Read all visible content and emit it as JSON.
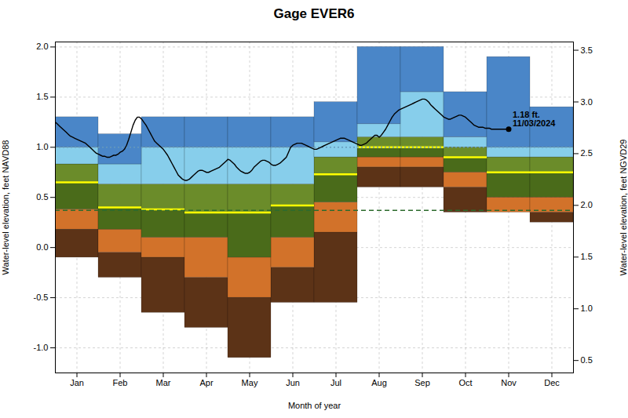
{
  "chart_data": {
    "type": "percentile_bands",
    "title": "Gage EVER6",
    "xlabel": "Month of year",
    "ylabel": "Water-level elevation, feet NAVD88",
    "y2label": "Water-level elevation, feet NGVD29",
    "categories": [
      "Jan",
      "Feb",
      "Mar",
      "Apr",
      "May",
      "Jun",
      "Jul",
      "Aug",
      "Sep",
      "Oct",
      "Nov",
      "Dec"
    ],
    "xlim": [
      0,
      12
    ],
    "xticks": [
      {
        "value": 0.5,
        "label": "Jan"
      },
      {
        "value": 1.5,
        "label": "Feb"
      },
      {
        "value": 2.5,
        "label": "Mar"
      },
      {
        "value": 3.5,
        "label": "Apr"
      },
      {
        "value": 4.5,
        "label": "May"
      },
      {
        "value": 5.5,
        "label": "Jun"
      },
      {
        "value": 6.5,
        "label": "Jul"
      },
      {
        "value": 7.5,
        "label": "Aug"
      },
      {
        "value": 8.5,
        "label": "Sep"
      },
      {
        "value": 9.5,
        "label": "Oct"
      },
      {
        "value": 10.5,
        "label": "Nov"
      },
      {
        "value": 11.5,
        "label": "Dec"
      }
    ],
    "ylim": [
      -1.25,
      2.05
    ],
    "yticks": [
      {
        "value": -1.0,
        "label": "-1.0"
      },
      {
        "value": -0.5,
        "label": "-0.5"
      },
      {
        "value": 0.0,
        "label": "0.0"
      },
      {
        "value": 0.5,
        "label": "0.5"
      },
      {
        "value": 1.0,
        "label": "1.0"
      },
      {
        "value": 1.5,
        "label": "1.5"
      },
      {
        "value": 2.0,
        "label": "2.0"
      }
    ],
    "y2lim": [
      0.38,
      3.58
    ],
    "y2ticks": [
      {
        "value": 0.5,
        "label": "0.5"
      },
      {
        "value": 1.0,
        "label": "1.0"
      },
      {
        "value": 1.5,
        "label": "1.5"
      },
      {
        "value": 2.0,
        "label": "2.0"
      },
      {
        "value": 2.5,
        "label": "2.5"
      },
      {
        "value": 3.0,
        "label": "3.0"
      },
      {
        "value": 3.5,
        "label": "3.5"
      }
    ],
    "grid": true,
    "percentiles": {
      "p0": [
        -0.1,
        -0.3,
        -0.65,
        -0.8,
        -1.1,
        -0.55,
        -0.55,
        0.6,
        0.6,
        0.35,
        0.35,
        0.25
      ],
      "p10": [
        0.18,
        -0.05,
        -0.1,
        -0.3,
        -0.5,
        -0.2,
        0.15,
        0.8,
        0.8,
        0.6,
        0.35,
        0.35
      ],
      "p25": [
        0.38,
        0.18,
        0.1,
        0.1,
        -0.1,
        0.1,
        0.45,
        0.9,
        0.9,
        0.75,
        0.5,
        0.5
      ],
      "p50": [
        0.65,
        0.4,
        0.38,
        0.35,
        0.35,
        0.42,
        0.73,
        1.0,
        1.0,
        0.9,
        0.75,
        0.75
      ],
      "p75": [
        0.83,
        0.63,
        0.63,
        0.63,
        0.63,
        0.63,
        0.9,
        1.1,
        1.1,
        1.0,
        0.9,
        0.9
      ],
      "p90": [
        1.0,
        0.83,
        1.0,
        1.0,
        1.0,
        1.0,
        1.05,
        1.23,
        1.55,
        1.1,
        1.0,
        1.0
      ],
      "p100": [
        1.3,
        1.13,
        1.3,
        1.3,
        1.3,
        1.3,
        1.45,
        2.0,
        2.0,
        1.55,
        1.9,
        1.4
      ]
    },
    "band_colors": [
      "#5c3317",
      "#d2722a",
      "#4a6b1a",
      "#6b8c2a",
      "#87ceeb",
      "#4a86c8"
    ],
    "median": {
      "color": "#ffff00"
    },
    "reference_lines": [
      {
        "y": 1.0,
        "color": "#6699bb",
        "line_style": "dotted"
      },
      {
        "y": 0.37,
        "color": "#2d6a2d",
        "line_style": "dashed"
      }
    ],
    "observed": {
      "color": "#000000",
      "x": [
        0.0,
        0.05,
        0.1,
        0.15,
        0.2,
        0.25,
        0.3,
        0.35,
        0.4,
        0.45,
        0.5,
        0.55,
        0.6,
        0.65,
        0.7,
        0.75,
        0.8,
        0.85,
        0.9,
        0.95,
        1.0,
        1.05,
        1.1,
        1.15,
        1.2,
        1.25,
        1.3,
        1.35,
        1.4,
        1.45,
        1.5,
        1.55,
        1.6,
        1.65,
        1.7,
        1.75,
        1.8,
        1.85,
        1.9,
        1.95,
        2.0,
        2.05,
        2.1,
        2.15,
        2.2,
        2.25,
        2.3,
        2.35,
        2.4,
        2.45,
        2.5,
        2.55,
        2.6,
        2.65,
        2.7,
        2.75,
        2.8,
        2.85,
        2.9,
        2.95,
        3.0,
        3.05,
        3.1,
        3.15,
        3.2,
        3.25,
        3.3,
        3.35,
        3.4,
        3.45,
        3.5,
        3.55,
        3.6,
        3.65,
        3.7,
        3.75,
        3.8,
        3.85,
        3.9,
        3.95,
        4.0,
        4.05,
        4.1,
        4.15,
        4.2,
        4.25,
        4.3,
        4.35,
        4.4,
        4.45,
        4.5,
        4.55,
        4.6,
        4.65,
        4.7,
        4.75,
        4.8,
        4.85,
        4.9,
        4.95,
        5.0,
        5.05,
        5.1,
        5.15,
        5.2,
        5.25,
        5.3,
        5.35,
        5.4,
        5.45,
        5.5,
        5.55,
        5.6,
        5.65,
        5.7,
        5.75,
        5.8,
        5.85,
        5.9,
        5.95,
        6.0,
        6.05,
        6.1,
        6.15,
        6.2,
        6.25,
        6.3,
        6.35,
        6.4,
        6.45,
        6.5,
        6.55,
        6.6,
        6.65,
        6.7,
        6.75,
        6.8,
        6.85,
        6.9,
        6.95,
        7.0,
        7.05,
        7.1,
        7.15,
        7.2,
        7.25,
        7.3,
        7.35,
        7.4,
        7.45,
        7.5,
        7.55,
        7.6,
        7.65,
        7.7,
        7.75,
        7.8,
        7.85,
        7.9,
        7.95,
        8.0,
        8.05,
        8.1,
        8.15,
        8.2,
        8.25,
        8.3,
        8.35,
        8.4,
        8.45,
        8.5,
        8.55,
        8.6,
        8.65,
        8.7,
        8.75,
        8.8,
        8.85,
        8.9,
        8.95,
        9.0,
        9.05,
        9.1,
        9.15,
        9.2,
        9.25,
        9.3,
        9.35,
        9.4,
        9.45,
        9.5,
        9.55,
        9.6,
        9.65,
        9.7,
        9.75,
        9.8,
        9.85,
        9.9,
        9.95,
        10.0,
        10.05,
        10.1,
        10.15,
        10.2,
        10.25,
        10.3,
        10.35,
        10.4,
        10.45,
        10.5
      ],
      "values": [
        1.25,
        1.23,
        1.21,
        1.19,
        1.17,
        1.15,
        1.13,
        1.11,
        1.1,
        1.09,
        1.08,
        1.07,
        1.06,
        1.05,
        1.04,
        1.02,
        1.0,
        0.98,
        0.96,
        0.94,
        0.93,
        0.92,
        0.91,
        0.91,
        0.9,
        0.9,
        0.91,
        0.92,
        0.92,
        0.93,
        0.95,
        0.96,
        0.98,
        1.02,
        1.08,
        1.15,
        1.22,
        1.27,
        1.3,
        1.3,
        1.28,
        1.25,
        1.22,
        1.18,
        1.14,
        1.1,
        1.06,
        1.04,
        1.02,
        1.0,
        0.98,
        0.95,
        0.92,
        0.88,
        0.84,
        0.8,
        0.76,
        0.72,
        0.7,
        0.68,
        0.67,
        0.67,
        0.68,
        0.7,
        0.72,
        0.74,
        0.76,
        0.77,
        0.77,
        0.76,
        0.75,
        0.75,
        0.76,
        0.77,
        0.78,
        0.79,
        0.8,
        0.82,
        0.84,
        0.86,
        0.88,
        0.87,
        0.85,
        0.83,
        0.8,
        0.78,
        0.76,
        0.75,
        0.74,
        0.74,
        0.75,
        0.77,
        0.8,
        0.82,
        0.84,
        0.86,
        0.87,
        0.87,
        0.86,
        0.85,
        0.83,
        0.82,
        0.82,
        0.83,
        0.84,
        0.86,
        0.88,
        0.9,
        0.95,
        1.0,
        1.02,
        1.03,
        1.04,
        1.04,
        1.04,
        1.03,
        1.02,
        1.01,
        1.0,
        0.99,
        0.98,
        0.98,
        0.99,
        1.0,
        1.01,
        1.02,
        1.03,
        1.04,
        1.05,
        1.06,
        1.07,
        1.08,
        1.09,
        1.09,
        1.09,
        1.08,
        1.07,
        1.06,
        1.05,
        1.04,
        1.03,
        1.02,
        1.02,
        1.03,
        1.04,
        1.06,
        1.08,
        1.1,
        1.12,
        1.12,
        1.1,
        1.12,
        1.15,
        1.18,
        1.22,
        1.26,
        1.3,
        1.33,
        1.35,
        1.37,
        1.38,
        1.39,
        1.4,
        1.41,
        1.42,
        1.43,
        1.44,
        1.45,
        1.46,
        1.47,
        1.48,
        1.48,
        1.47,
        1.45,
        1.42,
        1.4,
        1.38,
        1.36,
        1.34,
        1.32,
        1.3,
        1.29,
        1.28,
        1.28,
        1.29,
        1.3,
        1.31,
        1.32,
        1.32,
        1.31,
        1.3,
        1.28,
        1.26,
        1.24,
        1.22,
        1.21,
        1.2,
        1.2,
        1.2,
        1.19,
        1.19,
        1.19,
        1.18,
        1.18,
        1.18,
        1.18,
        1.18,
        1.18,
        1.18,
        1.18,
        1.18
      ]
    },
    "annotation": {
      "x": 10.5,
      "y": 1.18,
      "marker": "circle",
      "text": [
        "1.18 ft.",
        "11/03/2024"
      ]
    }
  }
}
